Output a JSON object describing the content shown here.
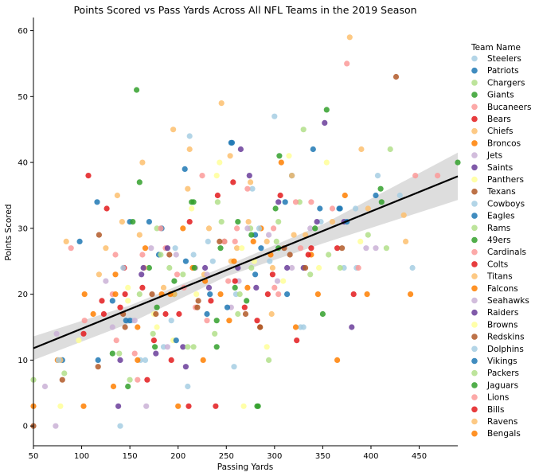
{
  "chart_data": {
    "type": "scatter",
    "title": "Points Scored vs Pass Yards Across All NFL Teams in the 2019 Season",
    "xlabel": "Passing Yards",
    "ylabel": "Points Scored",
    "xlim": [
      50,
      490
    ],
    "ylim": [
      -3,
      62
    ],
    "xticks": [
      50,
      100,
      150,
      200,
      250,
      300,
      350,
      400,
      450
    ],
    "yticks": [
      0,
      10,
      20,
      30,
      40,
      50,
      60
    ],
    "grid": false,
    "legend": {
      "title": "Team Name",
      "placement": "right"
    },
    "regression": {
      "x": [
        50,
        490
      ],
      "y": [
        11.8,
        37.9
      ],
      "band": [
        [
          50,
          10.0,
          13.6
        ],
        [
          150,
          15.6,
          18.3
        ],
        [
          250,
          22.7,
          24.3
        ],
        [
          350,
          27.7,
          30.6
        ],
        [
          490,
          34.3,
          41.5
        ]
      ],
      "color": "#000000",
      "band_color": "#d9d9d9"
    },
    "series": [
      {
        "name": "Steelers",
        "color": "#a6cee3",
        "x": [
          140,
          152,
          185,
          210,
          258,
          295,
          330,
          372,
          430
        ],
        "y": [
          0,
          16,
          12,
          6,
          9,
          25,
          15,
          24,
          35
        ]
      },
      {
        "name": "Patriots",
        "color": "#1f78b4",
        "x": [
          80,
          98,
          150,
          183,
          207,
          255,
          280,
          318,
          367,
          405
        ],
        "y": [
          10,
          28,
          31,
          30,
          39,
          43,
          29,
          38,
          33,
          35
        ]
      },
      {
        "name": "Chargers",
        "color": "#b2df8a",
        "x": [
          50,
          82,
          178,
          205,
          241,
          262,
          294,
          330,
          397,
          420
        ],
        "y": [
          7,
          8,
          30,
          23,
          34,
          17,
          10,
          45,
          29,
          42
        ]
      },
      {
        "name": "Giants",
        "color": "#33a02c",
        "x": [
          157,
          160,
          178,
          214,
          240,
          262,
          283,
          305,
          354,
          410
        ],
        "y": [
          51,
          37,
          18,
          34,
          12,
          31,
          3,
          41,
          48,
          36
        ]
      },
      {
        "name": "Bucaneers",
        "color": "#fb9a99",
        "x": [
          89,
          132,
          163,
          199,
          225,
          261,
          299,
          338,
          375,
          446
        ],
        "y": [
          27,
          20,
          26,
          23,
          38,
          30,
          30,
          34,
          55,
          38
        ]
      },
      {
        "name": "Bears",
        "color": "#e31a1c",
        "x": [
          107,
          126,
          144,
          175,
          201,
          239,
          257,
          293,
          323,
          365
        ],
        "y": [
          38,
          33,
          24,
          13,
          17,
          3,
          37,
          20,
          13,
          27
        ]
      },
      {
        "name": "Chiefs",
        "color": "#fdbf6f",
        "x": [
          84,
          137,
          163,
          195,
          212,
          245,
          254,
          275,
          298,
          378,
          390
        ],
        "y": [
          28,
          35,
          40,
          45,
          42,
          49,
          41,
          37,
          24,
          59,
          42
        ]
      },
      {
        "name": "Broncos",
        "color": "#ff7f00",
        "x": [
          50,
          102,
          133,
          166,
          200,
          226,
          253,
          286,
          338,
          373,
          441
        ],
        "y": [
          3,
          3,
          6,
          27,
          3,
          10,
          16,
          30,
          26,
          35,
          20
        ]
      },
      {
        "name": "Jets",
        "color": "#cab2d6",
        "x": [
          62,
          73,
          132,
          167,
          189,
          218,
          263,
          294,
          318,
          405
        ],
        "y": [
          6,
          0,
          15,
          3,
          12,
          24,
          22,
          29,
          24,
          27
        ]
      },
      {
        "name": "Saints",
        "color": "#6a3d9a",
        "x": [
          138,
          162,
          177,
          205,
          228,
          265,
          274,
          304,
          330,
          352,
          380
        ],
        "y": [
          3,
          23,
          11,
          12,
          24,
          42,
          38,
          34,
          24,
          46,
          15
        ]
      },
      {
        "name": "Panthers",
        "color": "#ffff99",
        "x": [
          78,
          97,
          148,
          175,
          214,
          240,
          268,
          292,
          315,
          354
        ],
        "y": [
          3,
          13,
          21,
          17,
          33,
          38,
          3,
          12,
          41,
          40
        ]
      },
      {
        "name": "Texans",
        "color": "#b15928",
        "x": [
          50,
          80,
          118,
          145,
          177,
          221,
          248,
          285,
          316,
          370,
          426
        ],
        "y": [
          0,
          7,
          29,
          15,
          17,
          19,
          28,
          15,
          26,
          27,
          53
        ]
      },
      {
        "name": "Cowboys",
        "color": "#a6cee3",
        "x": [
          161,
          197,
          212,
          236,
          277,
          300,
          348,
          385,
          407,
          443
        ],
        "y": [
          10,
          27,
          44,
          25,
          36,
          47,
          31,
          24,
          38,
          24
        ]
      },
      {
        "name": "Eagles",
        "color": "#1f78b4",
        "x": [
          116,
          132,
          150,
          180,
          208,
          233,
          256,
          280,
          313,
          340,
          368
        ],
        "y": [
          34,
          19,
          16,
          26,
          25,
          20,
          43,
          23,
          20,
          42,
          33
        ]
      },
      {
        "name": "Rams",
        "color": "#b2df8a",
        "x": [
          150,
          174,
          191,
          216,
          245,
          275,
          302,
          326,
          356,
          416
        ],
        "y": [
          7,
          14,
          24,
          12,
          31,
          30,
          28,
          34,
          26,
          27
        ]
      },
      {
        "name": "49ers",
        "color": "#33a02c",
        "x": [
          153,
          170,
          196,
          216,
          244,
          271,
          282,
          301,
          350,
          411,
          490
        ],
        "y": [
          31,
          24,
          20,
          34,
          27,
          19,
          3,
          33,
          17,
          34,
          40
        ]
      },
      {
        "name": "Cardinals",
        "color": "#fb9a99",
        "x": [
          103,
          135,
          155,
          187,
          218,
          248,
          259,
          304,
          322,
          360,
          469
        ],
        "y": [
          16,
          26,
          11,
          27,
          18,
          28,
          28,
          20,
          34,
          33,
          38
        ]
      },
      {
        "name": "Colts",
        "color": "#e31a1c",
        "x": [
          102,
          121,
          145,
          168,
          193,
          212,
          241,
          269,
          298,
          338,
          382
        ],
        "y": [
          14,
          19,
          20,
          7,
          10,
          31,
          35,
          18,
          23,
          27,
          20
        ]
      },
      {
        "name": "Titans",
        "color": "#fdbf6f",
        "x": [
          78,
          118,
          142,
          165,
          196,
          227,
          261,
          292,
          320,
          360,
          436
        ],
        "y": [
          10,
          23,
          31,
          24,
          20,
          23,
          27,
          28,
          29,
          31,
          28
        ]
      },
      {
        "name": "Falcons",
        "color": "#ff7f00",
        "x": [
          75,
          103,
          135,
          158,
          192,
          215,
          244,
          272,
          307,
          345,
          396
        ],
        "y": [
          10,
          20,
          23,
          10,
          20,
          24,
          20,
          21,
          40,
          20,
          20
        ]
      },
      {
        "name": "Seahawks",
        "color": "#cab2d6",
        "x": [
          74,
          125,
          155,
          172,
          198,
          230,
          255,
          272,
          303,
          337,
          395
        ],
        "y": [
          14,
          22,
          16,
          27,
          26,
          23,
          18,
          30,
          22,
          30,
          27
        ]
      },
      {
        "name": "Raiders",
        "color": "#6a3d9a",
        "x": [
          140,
          164,
          189,
          208,
          232,
          262,
          281,
          313,
          344,
          372
        ],
        "y": [
          10,
          24,
          27,
          9,
          21,
          24,
          21,
          24,
          31,
          31
        ]
      },
      {
        "name": "Browns",
        "color": "#ffff99",
        "x": [
          148,
          178,
          195,
          219,
          243,
          266,
          279,
          309,
          346,
          389
        ],
        "y": [
          19,
          15,
          13,
          20,
          40,
          27,
          25,
          22,
          24,
          28
        ]
      },
      {
        "name": "Redskins",
        "color": "#b15928",
        "x": [
          117,
          143,
          173,
          191,
          220,
          243,
          270,
          285,
          310,
          332
        ],
        "y": [
          9,
          17,
          20,
          26,
          18,
          28,
          17,
          15,
          27,
          24
        ]
      },
      {
        "name": "Dolphins",
        "color": "#a6cee3",
        "x": [
          76,
          143,
          166,
          193,
          216,
          231,
          260,
          284,
          327,
          384
        ],
        "y": [
          10,
          24,
          10,
          16,
          26,
          28,
          20,
          30,
          15,
          33
        ]
      },
      {
        "name": "Vikings",
        "color": "#1f78b4",
        "x": [
          117,
          146,
          170,
          198,
          230,
          251,
          286,
          311,
          347,
          375
        ],
        "y": [
          10,
          16,
          31,
          13,
          17,
          18,
          27,
          34,
          33,
          31
        ]
      },
      {
        "name": "Packers",
        "color": "#b2df8a",
        "x": [
          139,
          160,
          182,
          210,
          238,
          264,
          276,
          304,
          337,
          368
        ],
        "y": [
          11,
          20,
          26,
          12,
          14,
          20,
          24,
          31,
          23,
          24
        ]
      },
      {
        "name": "Jaguars",
        "color": "#33a02c",
        "x": [
          132,
          148,
          176,
          196,
          217,
          240,
          259,
          276,
          304,
          342
        ],
        "y": [
          11,
          6,
          12,
          22,
          24,
          16,
          21,
          29,
          27,
          30
        ]
      },
      {
        "name": "Lions",
        "color": "#fb9a99",
        "x": [
          136,
          158,
          182,
          206,
          230,
          252,
          272,
          300,
          327,
          387
        ],
        "y": [
          13,
          7,
          30,
          21,
          16,
          22,
          36,
          21,
          27,
          24
        ]
      },
      {
        "name": "Bills",
        "color": "#e31a1c",
        "x": [
          123,
          140,
          163,
          187,
          211,
          234,
          259,
          282,
          306,
          335
        ],
        "y": [
          17,
          18,
          21,
          17,
          3,
          19,
          22,
          16,
          35,
          26
        ]
      },
      {
        "name": "Ravens",
        "color": "#fdbf6f",
        "x": [
          125,
          160,
          185,
          210,
          232,
          255,
          273,
          297,
          318,
          332,
          397,
          434
        ],
        "y": [
          27,
          29,
          21,
          36,
          30,
          25,
          31,
          17,
          38,
          29,
          33,
          32
        ]
      },
      {
        "name": "Bengals",
        "color": "#ff7f00",
        "x": [
          112,
          135,
          158,
          183,
          205,
          228,
          258,
          278,
          296,
          322,
          365
        ],
        "y": [
          17,
          20,
          15,
          20,
          30,
          22,
          25,
          28,
          26,
          15,
          10
        ]
      }
    ]
  }
}
